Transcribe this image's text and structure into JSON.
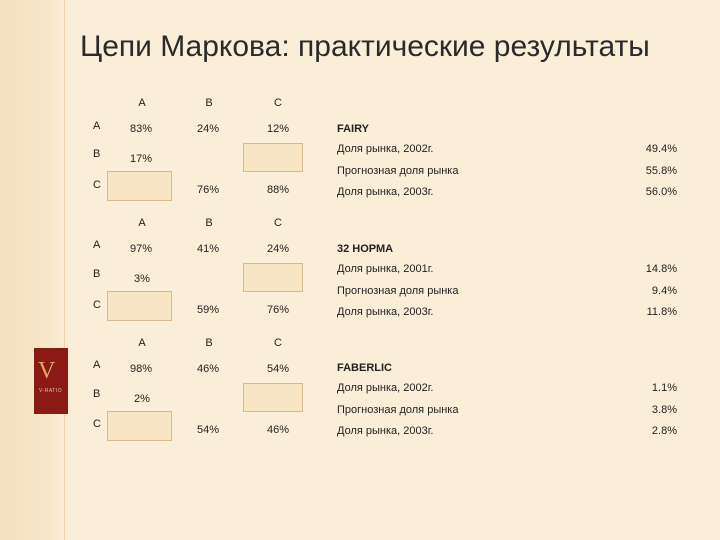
{
  "slide": {
    "title": "Цепи Маркова: практические результаты"
  },
  "logo": {
    "text": "V",
    "subtext": "V-RATIO"
  },
  "blocks": [
    {
      "matrix": {
        "col_headers": [
          "A",
          "B",
          "C"
        ],
        "row_labels": [
          "A",
          "B",
          "C"
        ],
        "row_a": [
          "83%",
          "24%",
          "12%"
        ],
        "row_b": "17%",
        "row_c": [
          "76%",
          "88%"
        ]
      },
      "stats": {
        "brand": "FAIRY",
        "rows": [
          {
            "label": "Доля рынка, 2002г.",
            "value": "49.4%"
          },
          {
            "label": "Прогнозная доля рынка",
            "value": "55.8%"
          },
          {
            "label": "Доля рынка, 2003г.",
            "value": "56.0%"
          }
        ]
      }
    },
    {
      "matrix": {
        "col_headers": [
          "A",
          "B",
          "C"
        ],
        "row_labels": [
          "A",
          "B",
          "C"
        ],
        "row_a": [
          "97%",
          "41%",
          "24%"
        ],
        "row_b": "3%",
        "row_c": [
          "59%",
          "76%"
        ]
      },
      "stats": {
        "brand": "32 НОРМА",
        "rows": [
          {
            "label": "Доля рынка, 2001г.",
            "value": "14.8%"
          },
          {
            "label": "Прогнозная доля рынка",
            "value": "9.4%"
          },
          {
            "label": "Доля рынка, 2003г.",
            "value": "11.8%"
          }
        ]
      }
    },
    {
      "matrix": {
        "col_headers": [
          "A",
          "B",
          "C"
        ],
        "row_labels": [
          "A",
          "B",
          "C"
        ],
        "row_a": [
          "98%",
          "46%",
          "54%"
        ],
        "row_b": "2%",
        "row_c": [
          "54%",
          "46%"
        ]
      },
      "stats": {
        "brand": "FABERLIC",
        "rows": [
          {
            "label": "Доля рынка, 2002г.",
            "value": "1.1%"
          },
          {
            "label": "Прогнозная доля рынка",
            "value": "3.8%"
          },
          {
            "label": "Доля рынка, 2003г.",
            "value": "2.8%"
          }
        ]
      }
    }
  ]
}
